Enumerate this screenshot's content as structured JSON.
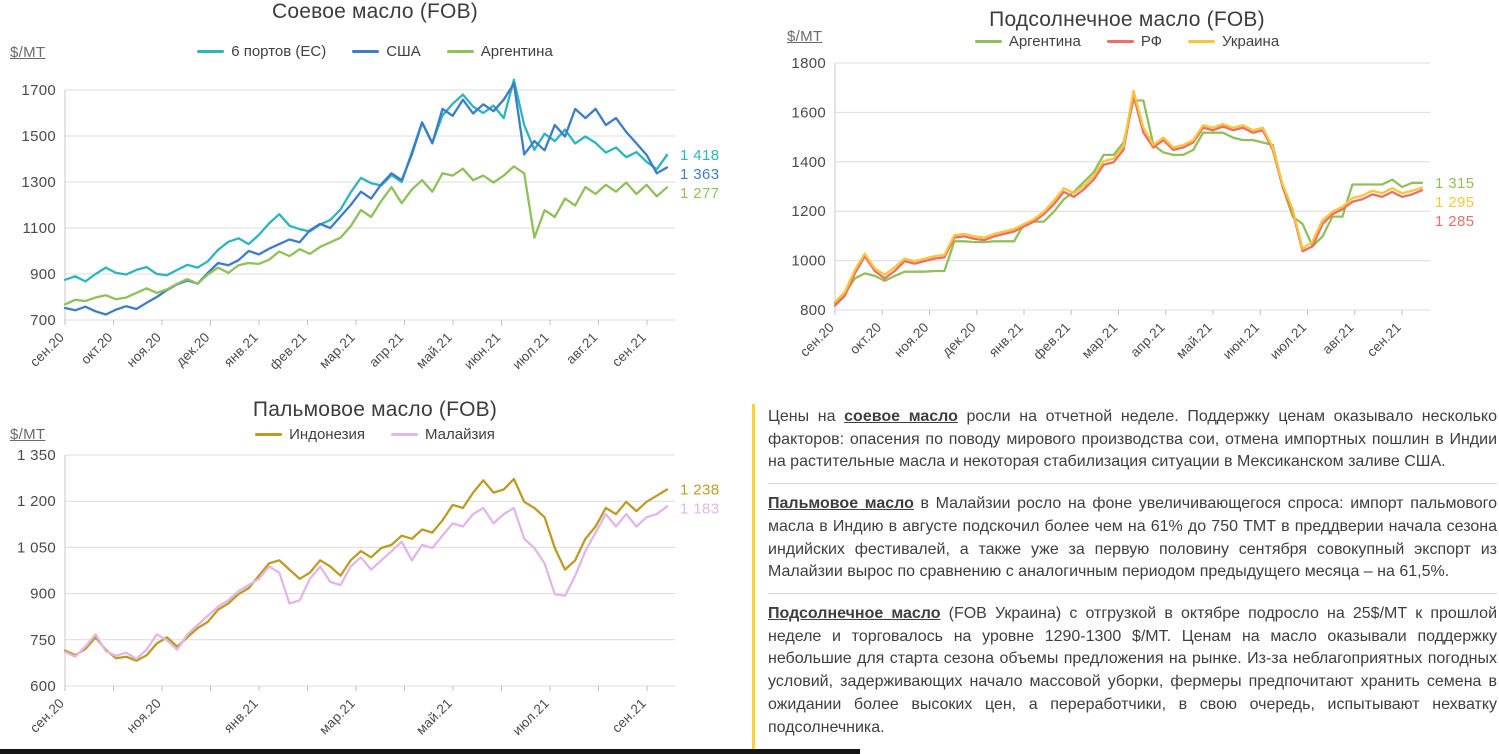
{
  "chart_data": [
    {
      "type": "line",
      "title": "Соевое масло (FOB)",
      "unit_label": "$/MT",
      "ylim": [
        700,
        1700
      ],
      "y_ticks": [
        "1700",
        "1500",
        "1300",
        "1100",
        "900",
        "700"
      ],
      "x_labels": [
        "сен.20",
        "окт.20",
        "ноя.20",
        "дек.20",
        "янв.21",
        "фев.21",
        "мар.21",
        "апр.21",
        "май.21",
        "июн.21",
        "июл.21",
        "авг.21",
        "сен.21"
      ],
      "label_every": 1,
      "grid": "horizontal",
      "legend_position": "top",
      "series": [
        {
          "name": "6 портов (ЕС)",
          "color": "#2cb5bc",
          "end_label": "1 418",
          "values": [
            875,
            890,
            868,
            900,
            928,
            905,
            898,
            918,
            930,
            900,
            895,
            918,
            940,
            928,
            955,
            1005,
            1040,
            1055,
            1030,
            1070,
            1120,
            1160,
            1110,
            1095,
            1085,
            1115,
            1135,
            1180,
            1255,
            1318,
            1295,
            1285,
            1330,
            1300,
            1430,
            1560,
            1470,
            1590,
            1640,
            1680,
            1628,
            1600,
            1632,
            1578,
            1745,
            1548,
            1440,
            1510,
            1478,
            1528,
            1468,
            1498,
            1470,
            1428,
            1450,
            1408,
            1430,
            1388,
            1355,
            1418
          ]
        },
        {
          "name": "США",
          "color": "#3e7cc7",
          "end_label": "1 363",
          "values": [
            752,
            742,
            758,
            738,
            724,
            745,
            760,
            748,
            775,
            800,
            830,
            855,
            872,
            858,
            905,
            948,
            938,
            960,
            1000,
            985,
            1010,
            1030,
            1050,
            1038,
            1090,
            1118,
            1100,
            1150,
            1200,
            1258,
            1228,
            1290,
            1338,
            1308,
            1420,
            1558,
            1468,
            1618,
            1588,
            1658,
            1598,
            1638,
            1608,
            1658,
            1728,
            1420,
            1478,
            1438,
            1548,
            1498,
            1618,
            1578,
            1618,
            1548,
            1578,
            1518,
            1468,
            1418,
            1338,
            1363
          ]
        },
        {
          "name": "Аргентина",
          "color": "#90c05a",
          "end_label": "1 277",
          "values": [
            768,
            788,
            782,
            798,
            808,
            790,
            798,
            818,
            838,
            818,
            833,
            858,
            878,
            858,
            898,
            928,
            905,
            938,
            948,
            944,
            962,
            998,
            978,
            1008,
            988,
            1018,
            1038,
            1058,
            1108,
            1178,
            1148,
            1218,
            1278,
            1208,
            1268,
            1308,
            1258,
            1338,
            1328,
            1358,
            1308,
            1328,
            1298,
            1328,
            1368,
            1338,
            1058,
            1178,
            1148,
            1228,
            1198,
            1278,
            1248,
            1288,
            1258,
            1298,
            1248,
            1288,
            1238,
            1277
          ]
        }
      ]
    },
    {
      "type": "line",
      "title": "Подсолнечное масло (FOB)",
      "unit_label": "$/MT",
      "ylim": [
        800,
        1800
      ],
      "y_ticks": [
        "1800",
        "1600",
        "1400",
        "1200",
        "1000",
        "800"
      ],
      "x_labels": [
        "сен.20",
        "окт.20",
        "ноя.20",
        "дек.20",
        "янв.21",
        "фев.21",
        "мар.21",
        "апр.21",
        "май.21",
        "июн.21",
        "июл.21",
        "авг.21",
        "сен.21"
      ],
      "label_every": 1,
      "grid": "horizontal",
      "legend_position": "top",
      "series": [
        {
          "name": "Аргентина",
          "color": "#90c05a",
          "end_label": "1 315",
          "values": [
            828,
            868,
            928,
            948,
            938,
            918,
            938,
            955,
            955,
            955,
            958,
            958,
            1078,
            1078,
            1075,
            1075,
            1078,
            1078,
            1078,
            1148,
            1158,
            1158,
            1198,
            1248,
            1278,
            1318,
            1358,
            1428,
            1428,
            1478,
            1648,
            1648,
            1468,
            1438,
            1428,
            1428,
            1448,
            1518,
            1518,
            1518,
            1498,
            1488,
            1488,
            1478,
            1468,
            1298,
            1178,
            1148,
            1058,
            1098,
            1178,
            1178,
            1308,
            1308,
            1308,
            1308,
            1328,
            1298,
            1315,
            1315
          ]
        },
        {
          "name": "РФ",
          "color": "#ee6e66",
          "end_label": "1 285",
          "values": [
            818,
            858,
            948,
            1018,
            958,
            928,
            958,
            998,
            988,
            998,
            1008,
            1013,
            1093,
            1098,
            1088,
            1083,
            1098,
            1108,
            1118,
            1138,
            1158,
            1188,
            1228,
            1278,
            1258,
            1288,
            1328,
            1388,
            1398,
            1448,
            1668,
            1518,
            1458,
            1488,
            1448,
            1458,
            1478,
            1538,
            1528,
            1543,
            1528,
            1538,
            1518,
            1528,
            1448,
            1298,
            1198,
            1038,
            1058,
            1148,
            1188,
            1208,
            1238,
            1248,
            1268,
            1258,
            1278,
            1258,
            1268,
            1285
          ]
        },
        {
          "name": "Украина",
          "color": "#f8c63d",
          "end_label": "1 295",
          "values": [
            833,
            873,
            963,
            1028,
            968,
            943,
            973,
            1008,
            998,
            1008,
            1018,
            1023,
            1103,
            1108,
            1098,
            1093,
            1108,
            1118,
            1128,
            1148,
            1168,
            1198,
            1243,
            1293,
            1273,
            1303,
            1343,
            1403,
            1413,
            1463,
            1688,
            1538,
            1468,
            1498,
            1458,
            1468,
            1488,
            1548,
            1538,
            1553,
            1538,
            1548,
            1528,
            1538,
            1458,
            1308,
            1208,
            1048,
            1078,
            1163,
            1198,
            1218,
            1253,
            1263,
            1283,
            1273,
            1293,
            1273,
            1283,
            1295
          ]
        }
      ]
    },
    {
      "type": "line",
      "title": "Пальмовое масло (FOB)",
      "unit_label": "$/MT",
      "ylim": [
        600,
        1350
      ],
      "y_ticks": [
        "1 350",
        "1 200",
        "1 050",
        "900",
        "750",
        "600"
      ],
      "x_labels": [
        "сен.20",
        "ноя.20",
        "янв.21",
        "мар.21",
        "май.21",
        "июл.21",
        "сен.21"
      ],
      "label_every": 2,
      "grid": "horizontal",
      "legend_position": "top",
      "series": [
        {
          "name": "Индонезия",
          "color": "#bd9b23",
          "end_label": "1 238",
          "values": [
            715,
            700,
            720,
            758,
            718,
            690,
            695,
            682,
            700,
            738,
            758,
            728,
            758,
            788,
            808,
            848,
            868,
            898,
            918,
            958,
            998,
            1008,
            978,
            948,
            968,
            1008,
            988,
            958,
            1008,
            1038,
            1018,
            1048,
            1058,
            1088,
            1078,
            1108,
            1098,
            1138,
            1188,
            1178,
            1228,
            1268,
            1228,
            1238,
            1272,
            1198,
            1178,
            1148,
            1048,
            978,
            1008,
            1078,
            1118,
            1178,
            1158,
            1198,
            1168,
            1198,
            1218,
            1238
          ]
        },
        {
          "name": "Малайзия",
          "color": "#e0b7e8",
          "end_label": "1 183",
          "values": [
            710,
            695,
            728,
            768,
            713,
            698,
            708,
            688,
            718,
            768,
            748,
            718,
            768,
            798,
            828,
            858,
            878,
            908,
            928,
            948,
            988,
            968,
            868,
            878,
            948,
            988,
            938,
            928,
            988,
            1018,
            978,
            1008,
            1038,
            1068,
            1008,
            1058,
            1048,
            1088,
            1128,
            1118,
            1158,
            1178,
            1128,
            1158,
            1178,
            1078,
            1048,
            998,
            898,
            893,
            958,
            1038,
            1098,
            1158,
            1118,
            1158,
            1118,
            1148,
            1158,
            1183
          ]
        }
      ]
    }
  ],
  "commentary": {
    "accent_color": "#ffd42e",
    "paragraphs": [
      {
        "prefix": "Цены на ",
        "term": "соевое масло",
        "rest": " росли на отчетной неделе. Поддержку ценам оказывало несколько факторов: опасения по поводу мирового производства сои, отмена импортных пошлин в Индии на растительные масла и некоторая стабилизация ситуации в Мексиканском заливе США."
      },
      {
        "prefix": "",
        "term": "Пальмовое масло",
        "rest": " в Малайзии росло на фоне увеличивающегося спроса: импорт пальмового масла в Индию в августе подскочил более чем на 61% до 750 ТМТ в преддверии начала сезона индийских фестивалей, а также уже за первую половину сентября совокупный экспорт из Малайзии вырос по сравнению с аналогичным периодом предыдущего месяца – на 61,5%."
      },
      {
        "prefix": "",
        "term": "Подсолнечное масло",
        "rest": " (FOB Украина) с отгрузкой в октябре подросло на 25$/МТ к прошлой неделе и торговалось на уровне 1290-1300 $/МТ. Ценам на масло оказывали поддержку небольшие для старта сезона объемы предложения на рынке. Из-за неблагоприятных погодных условий, задерживающих начало массовой уборки, фермеры предпочитают хранить семена в ожидании более высоких цен, а переработчики, в свою очередь, испытывают нехватку подсолнечника."
      }
    ]
  },
  "footer": {
    "bar_color": "#141414"
  }
}
